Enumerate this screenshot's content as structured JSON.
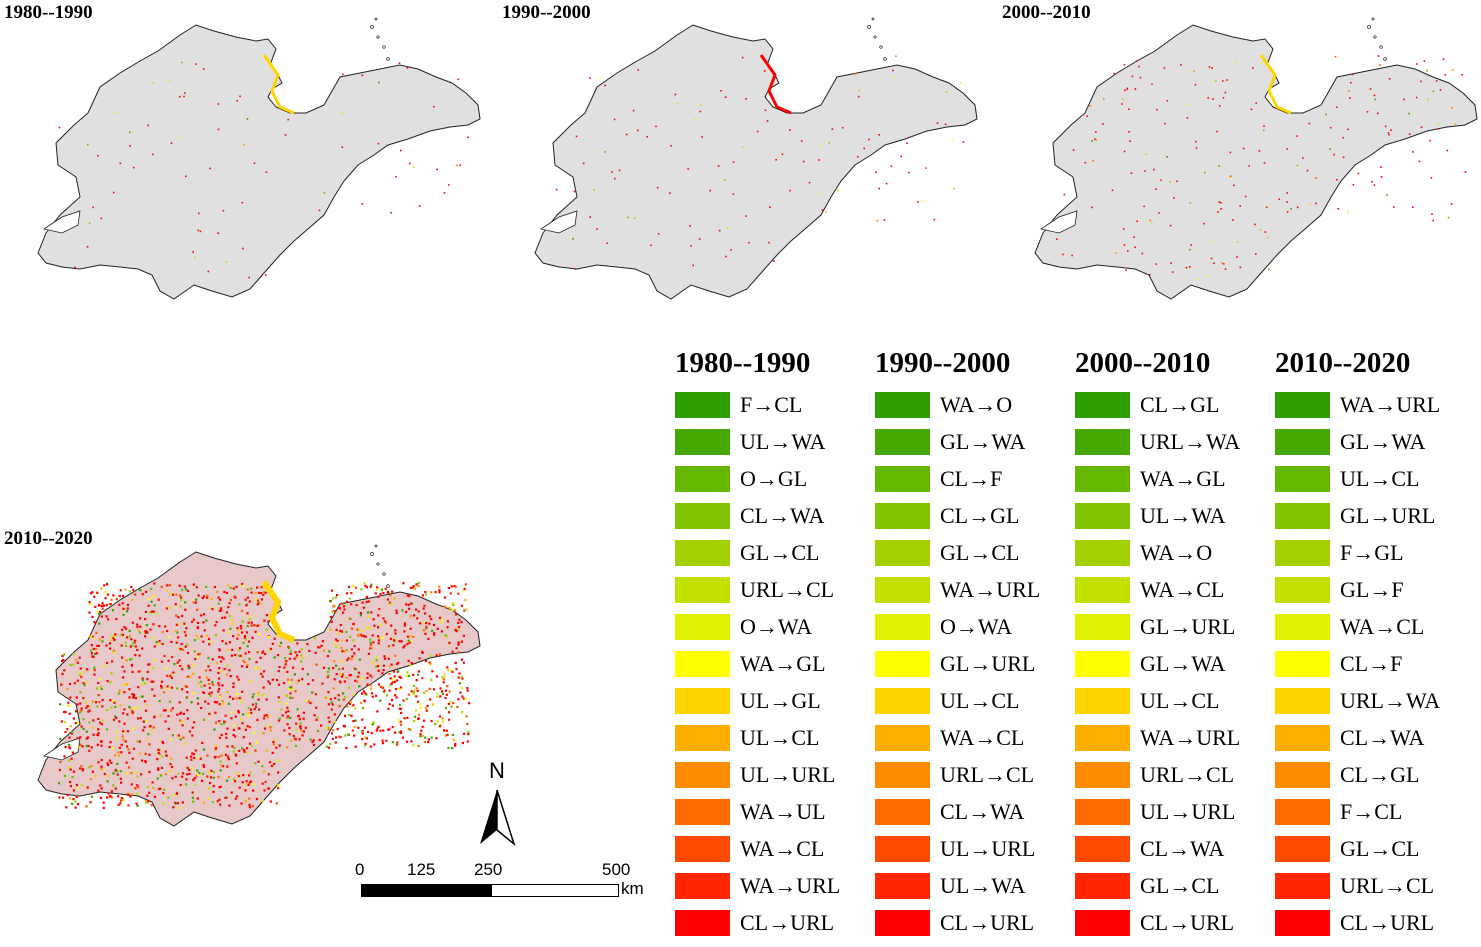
{
  "maps": [
    {
      "title": "1980--1990"
    },
    {
      "title": "1990--2000"
    },
    {
      "title": "2000--2010"
    },
    {
      "title": "2010--2020"
    }
  ],
  "legend": [
    {
      "period": "1980--1990",
      "items": [
        "F→CL",
        "UL→WA",
        "O→GL",
        "CL→WA",
        "GL→CL",
        "URL→CL",
        "O→WA",
        "WA→GL",
        "UL→GL",
        "UL→CL",
        "UL→URL",
        "WA→UL",
        "WA→CL",
        "WA→URL",
        "CL→URL"
      ]
    },
    {
      "period": "1990--2000",
      "items": [
        "WA→O",
        "GL→WA",
        "CL→F",
        "CL→GL",
        "GL→CL",
        "WA→URL",
        "O→WA",
        "GL→URL",
        "UL→CL",
        "WA→CL",
        "URL→CL",
        "CL→WA",
        "UL→URL",
        "UL→WA",
        "CL→URL"
      ]
    },
    {
      "period": "2000--2010",
      "items": [
        "CL→GL",
        "URL→WA",
        "WA→GL",
        "UL→WA",
        "WA→O",
        "WA→CL",
        "GL→URL",
        "GL→WA",
        "UL→CL",
        "WA→URL",
        "URL→CL",
        "UL→URL",
        "CL→WA",
        "GL→CL",
        "CL→URL"
      ]
    },
    {
      "period": "2010--2020",
      "items": [
        "WA→URL",
        "GL→WA",
        "UL→CL",
        "GL→URL",
        "F→GL",
        "GL→F",
        "WA→CL",
        "CL→F",
        "URL→WA",
        "CL→WA",
        "CL→GL",
        "F→CL",
        "GL→CL",
        "URL→CL",
        "CL→URL"
      ]
    }
  ],
  "legend_colors": [
    "#2e9e00",
    "#46a800",
    "#65b700",
    "#80c400",
    "#a3d100",
    "#c3e000",
    "#e1ef00",
    "#ffff00",
    "#ffd500",
    "#ffae00",
    "#ff8c00",
    "#ff6a00",
    "#ff4a00",
    "#ff2600",
    "#ff0000"
  ],
  "scale_bar": {
    "ticks": [
      "0",
      "125",
      "250",
      "500"
    ],
    "unit": "km"
  },
  "north_arrow": {
    "label": "N"
  }
}
